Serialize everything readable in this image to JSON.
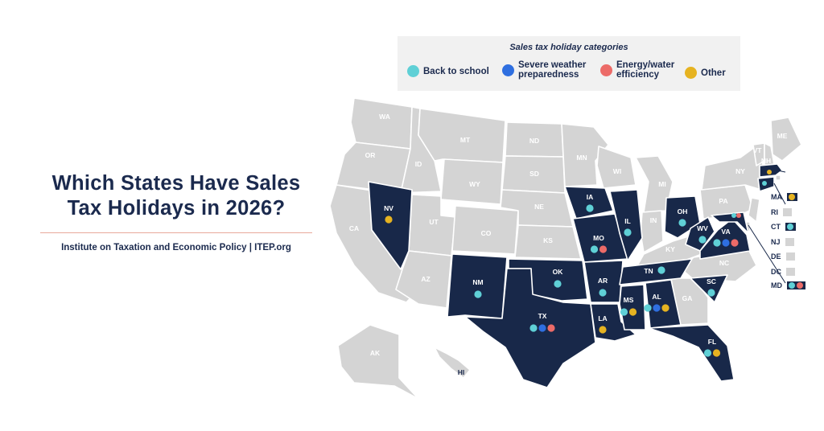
{
  "title_line1": "Which States Have Sales",
  "title_line2": "Tax Holidays in 2026?",
  "subtitle": "Institute on Taxation and Economic Policy | ITEP.org",
  "legend": {
    "title": "Sales tax holiday categories",
    "items": [
      {
        "key": "back",
        "label": "Back to school",
        "color": "#5fd0d6"
      },
      {
        "key": "weather",
        "label1": "Severe weather",
        "label2": "preparedness",
        "color": "#2f6fe0"
      },
      {
        "key": "energy",
        "label1": "Energy/water",
        "label2": "efficiency",
        "color": "#ec6b68"
      },
      {
        "key": "other",
        "label": "Other",
        "color": "#e6b321"
      }
    ]
  },
  "colors": {
    "holiday": "#182849",
    "none": "#d4d4d4"
  },
  "states_with_holiday": {
    "NV": [
      "other"
    ],
    "NM": [
      "back"
    ],
    "TX": [
      "back",
      "weather",
      "energy"
    ],
    "OK": [
      "back"
    ],
    "IA": [
      "back"
    ],
    "MO": [
      "back",
      "energy"
    ],
    "AR": [
      "back"
    ],
    "LA": [
      "other"
    ],
    "IL": [
      "back"
    ],
    "MS": [
      "back",
      "other"
    ],
    "AL": [
      "back",
      "weather",
      "other"
    ],
    "TN": [
      "back"
    ],
    "OH": [
      "back"
    ],
    "WV": [
      "back"
    ],
    "VA": [
      "back",
      "weather",
      "energy"
    ],
    "SC": [
      "back"
    ],
    "FL": [
      "back",
      "other"
    ],
    "CT": [
      "back"
    ],
    "MA": [
      "other"
    ],
    "MD": [
      "back",
      "energy"
    ]
  },
  "states_without_holiday": [
    "WA",
    "OR",
    "CA",
    "ID",
    "MT",
    "WY",
    "UT",
    "AZ",
    "CO",
    "ND",
    "SD",
    "NE",
    "KS",
    "MN",
    "WI",
    "MI",
    "IN",
    "KY",
    "NC",
    "GA",
    "PA",
    "NY",
    "VT",
    "NH",
    "ME",
    "NJ",
    "DE",
    "RI",
    "DC",
    "AK",
    "HI"
  ],
  "side_list": [
    {
      "abbr": "MA",
      "cats": [
        "other"
      ]
    },
    {
      "abbr": "RI",
      "cats": []
    },
    {
      "abbr": "CT",
      "cats": [
        "back"
      ]
    },
    {
      "abbr": "NJ",
      "cats": []
    },
    {
      "abbr": "DE",
      "cats": []
    },
    {
      "abbr": "DC",
      "cats": []
    },
    {
      "abbr": "MD",
      "cats": [
        "back",
        "energy"
      ]
    }
  ]
}
